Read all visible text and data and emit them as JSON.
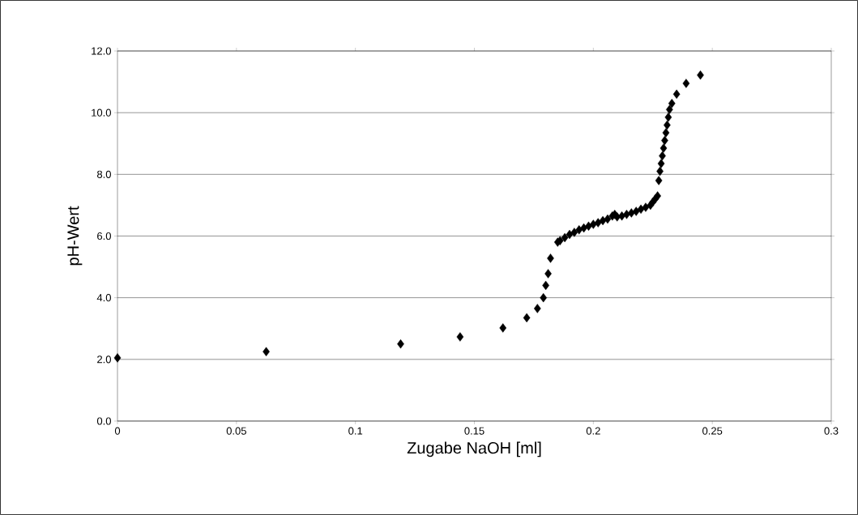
{
  "chart_data": {
    "type": "scatter",
    "xlabel": "Zugabe NaOH [ml]",
    "ylabel": "pH-Wert",
    "x": [
      0,
      0.0625,
      0.119,
      0.144,
      0.162,
      0.172,
      0.1765,
      0.179,
      0.18,
      0.181,
      0.182,
      0.185,
      0.186,
      0.188,
      0.19,
      0.192,
      0.194,
      0.196,
      0.198,
      0.2,
      0.202,
      0.204,
      0.206,
      0.208,
      0.209,
      0.21,
      0.212,
      0.214,
      0.216,
      0.218,
      0.22,
      0.222,
      0.224,
      0.225,
      0.226,
      0.227,
      0.2275,
      0.228,
      0.2285,
      0.229,
      0.2295,
      0.23,
      0.2305,
      0.231,
      0.2315,
      0.232,
      0.233,
      0.235,
      0.239,
      0.245
    ],
    "values": [
      2.05,
      2.25,
      2.5,
      2.73,
      3.02,
      3.35,
      3.65,
      4.0,
      4.4,
      4.78,
      5.28,
      5.8,
      5.85,
      5.95,
      6.05,
      6.12,
      6.2,
      6.26,
      6.32,
      6.38,
      6.43,
      6.5,
      6.55,
      6.65,
      6.7,
      6.62,
      6.65,
      6.7,
      6.75,
      6.8,
      6.87,
      6.93,
      7.0,
      7.1,
      7.2,
      7.3,
      7.8,
      8.1,
      8.35,
      8.6,
      8.85,
      9.1,
      9.35,
      9.6,
      9.85,
      10.1,
      10.3,
      10.6,
      10.95,
      11.22
    ],
    "color": "#000000",
    "marker": "diamond",
    "grid": "y",
    "xlim": [
      0,
      0.3
    ],
    "ylim": [
      0,
      12
    ],
    "xticks": [
      {
        "value": 0,
        "label": "0"
      },
      {
        "value": 0.05,
        "label": "0.05"
      },
      {
        "value": 0.1,
        "label": "0.1"
      },
      {
        "value": 0.15,
        "label": "0.15"
      },
      {
        "value": 0.2,
        "label": "0.2"
      },
      {
        "value": 0.25,
        "label": "0.25"
      },
      {
        "value": 0.3,
        "label": "0.3"
      }
    ],
    "yticks": [
      {
        "value": 0,
        "label": "0.0"
      },
      {
        "value": 2,
        "label": "2.0"
      },
      {
        "value": 4,
        "label": "4.0"
      },
      {
        "value": 6,
        "label": "6.0"
      },
      {
        "value": 8,
        "label": "8.0"
      },
      {
        "value": 10,
        "label": "10.0"
      },
      {
        "value": 12,
        "label": "12.0"
      }
    ]
  }
}
